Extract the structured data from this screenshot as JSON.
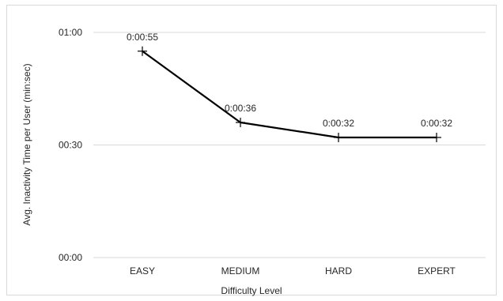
{
  "chart_data": {
    "type": "line",
    "title": "",
    "xlabel": "Difficulty Level",
    "ylabel": "Avg. Inactivity Time per User (min:sec)",
    "categories": [
      "EASY",
      "MEDIUM",
      "HARD",
      "EXPERT"
    ],
    "series": [
      {
        "values_seconds": [
          55,
          36,
          32,
          32
        ],
        "data_labels": [
          "0:00:55",
          "0:00:36",
          "0:00:32",
          "0:00:32"
        ],
        "color": "#000000",
        "marker": "cross"
      }
    ],
    "y_ticks_seconds": [
      0,
      30,
      60
    ],
    "y_tick_labels": [
      "00:00",
      "00:30",
      "01:00"
    ],
    "ylim_seconds": [
      0,
      60
    ],
    "grid": "horizontal",
    "legend": "none"
  }
}
